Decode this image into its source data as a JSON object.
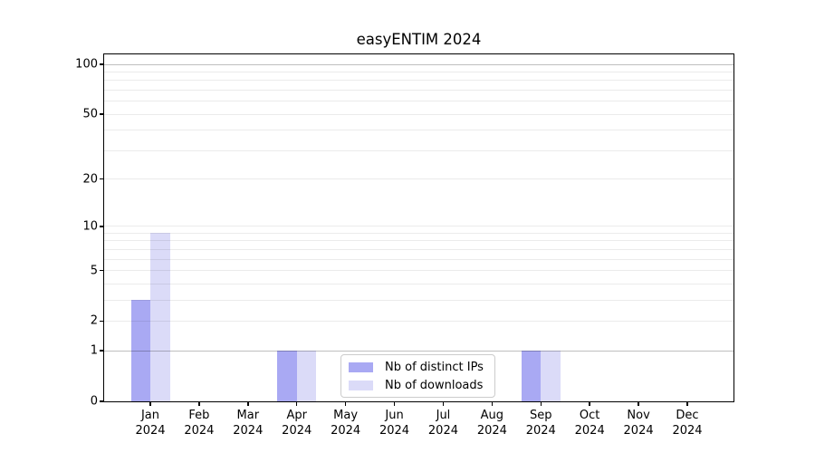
{
  "chart_data": {
    "type": "bar",
    "title": "easyENTIM 2024",
    "categories": [
      "Jan",
      "Feb",
      "Mar",
      "Apr",
      "May",
      "Jun",
      "Jul",
      "Aug",
      "Sep",
      "Oct",
      "Nov",
      "Dec"
    ],
    "year": "2024",
    "series": [
      {
        "name": "Nb of distinct IPs",
        "color": "#a9a9f3",
        "values": [
          3,
          0,
          0,
          1,
          0,
          0,
          0,
          0,
          1,
          0,
          0,
          0
        ]
      },
      {
        "name": "Nb of downloads",
        "color": "#dbdbf8",
        "values": [
          9,
          0,
          0,
          1,
          0,
          0,
          0,
          0,
          1,
          0,
          0,
          0
        ]
      }
    ],
    "xlabel": "",
    "ylabel": "",
    "yscale": "log1p",
    "ylim": [
      0,
      115
    ],
    "yticks": [
      0,
      1,
      2,
      5,
      10,
      20,
      50,
      100
    ],
    "grid": true,
    "grid_values": [
      1,
      2,
      3,
      4,
      5,
      6,
      7,
      8,
      9,
      10,
      20,
      30,
      40,
      50,
      60,
      70,
      80,
      90,
      100
    ],
    "grid_emphasis": [
      1,
      100
    ],
    "legend_position": "lower center"
  }
}
